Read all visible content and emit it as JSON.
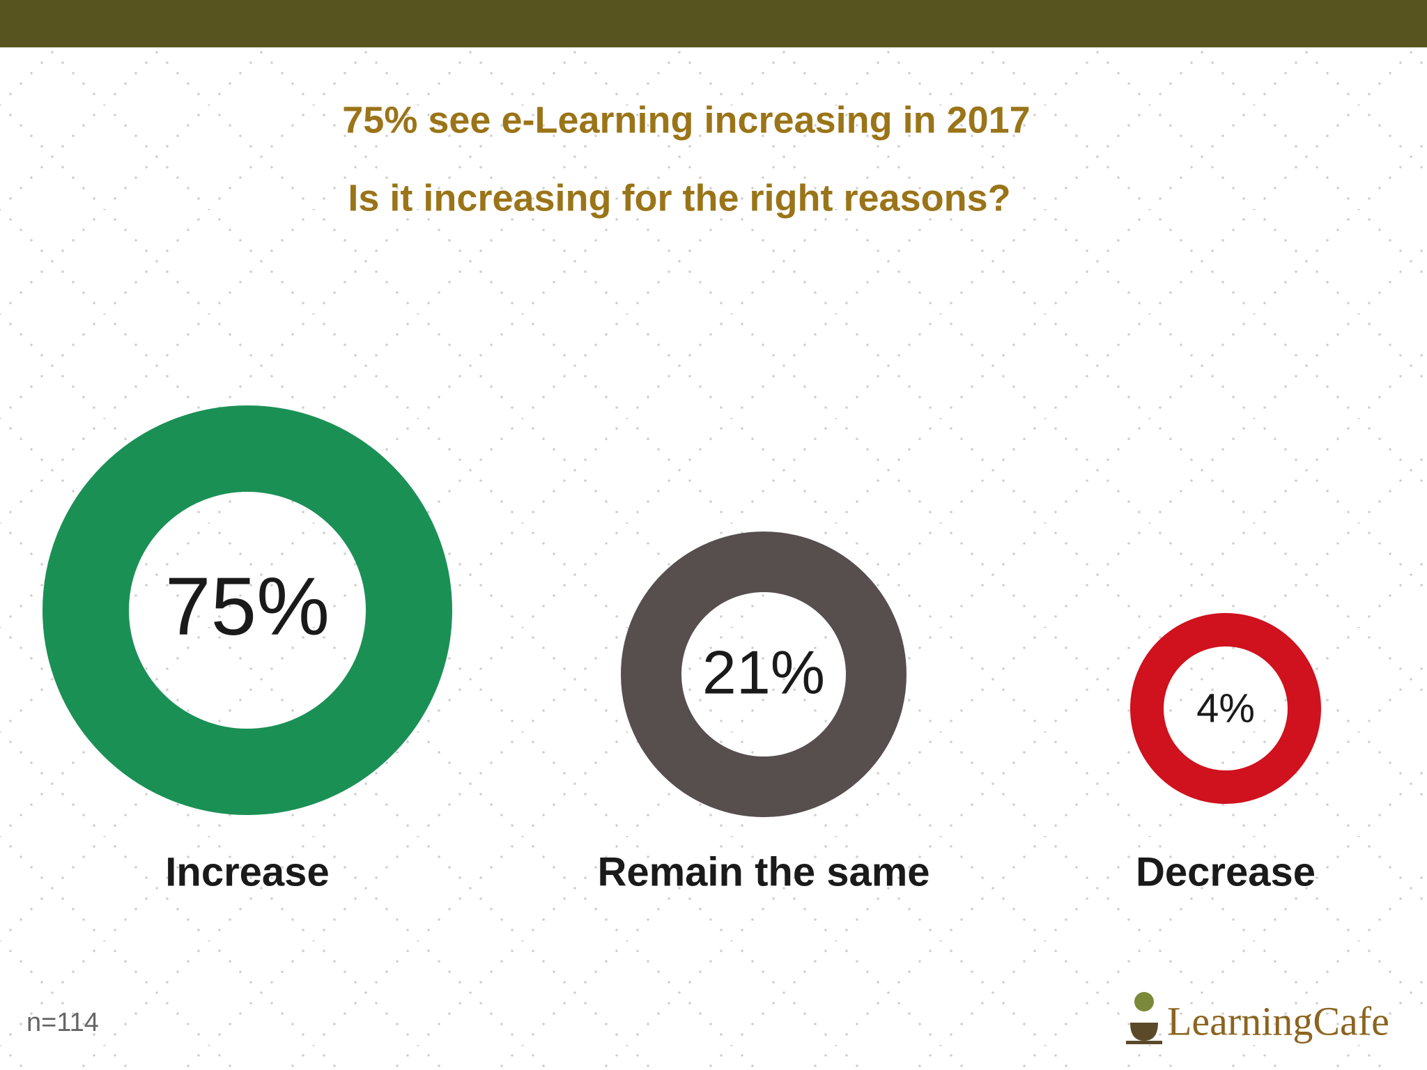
{
  "chart_data": {
    "type": "ring",
    "title": "75% see e-Learning increasing in 2017",
    "subtitle": "Is it increasing for the right reasons?",
    "categories": [
      "Increase",
      "Remain the same",
      "Decrease"
    ],
    "values": [
      75,
      21,
      4
    ],
    "value_labels": [
      "75%",
      "21%",
      "4%"
    ],
    "colors": [
      "#1b9055",
      "#574e4e",
      "#d0111e"
    ],
    "note": "n=114",
    "logo": "LearningCafe"
  }
}
